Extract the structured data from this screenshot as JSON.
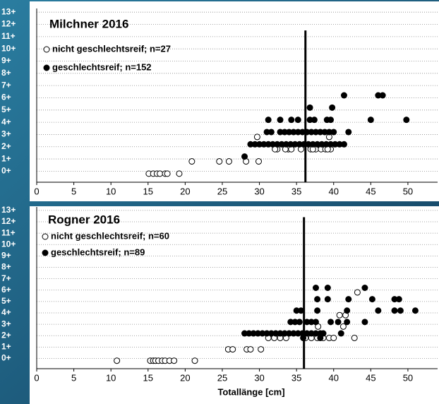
{
  "chart_data": [
    {
      "type": "scatter",
      "title": "Milchner 2016",
      "xlim": [
        0,
        54
      ],
      "ylim": [
        -0.9,
        13.3
      ],
      "xticks": [
        0,
        5,
        10,
        15,
        20,
        25,
        30,
        35,
        40,
        45,
        50
      ],
      "yticks": [
        {
          "value": 0,
          "label": "0+"
        },
        {
          "value": 1,
          "label": "1+"
        },
        {
          "value": 2,
          "label": "2+"
        },
        {
          "value": 3,
          "label": "3+"
        },
        {
          "value": 4,
          "label": "4+"
        },
        {
          "value": 5,
          "label": "5+"
        },
        {
          "value": 6,
          "label": "6+"
        },
        {
          "value": 7,
          "label": "7+"
        },
        {
          "value": 8,
          "label": "8+"
        },
        {
          "value": 9,
          "label": "9+"
        },
        {
          "value": 10,
          "label": "10+"
        },
        {
          "value": 11,
          "label": "11+"
        },
        {
          "value": 12,
          "label": "12+"
        },
        {
          "value": 13,
          "label": "13+"
        }
      ],
      "grid": true,
      "reference_x": 36.2,
      "reference_top": 11.5,
      "series": [
        {
          "name": "nicht geschlechtsreif; n=27",
          "color": "#000000",
          "filled": false,
          "x": [
            15.1,
            15.7,
            16.2,
            16.6,
            17.3,
            17.6,
            19.2,
            20.9,
            24.6,
            25.9,
            28.2,
            29.9,
            29.7,
            32.4,
            33.9,
            34.3,
            35.6,
            37.6,
            38.3,
            38.9,
            39.6,
            39.4,
            36.9,
            33.5,
            32.1,
            37.2,
            39.2
          ],
          "values": [
            -0.2,
            -0.2,
            -0.2,
            -0.2,
            -0.2,
            -0.2,
            -0.2,
            0.8,
            0.8,
            0.8,
            0.8,
            0.8,
            2.8,
            1.8,
            1.8,
            1.8,
            1.8,
            1.8,
            1.8,
            1.8,
            1.8,
            2.8,
            1.8,
            1.8,
            1.8,
            1.8,
            1.8
          ]
        },
        {
          "name": "geschlechtsreif; n=152",
          "color": "#000000",
          "filled": true,
          "x": [
            28.0,
            28.8,
            29.4,
            30.0,
            30.6,
            31.2,
            31.8,
            32.4,
            33.0,
            33.6,
            34.2,
            34.8,
            35.4,
            36.0,
            36.6,
            37.2,
            37.8,
            38.4,
            39.0,
            39.6,
            40.2,
            40.8,
            41.4,
            31.0,
            31.6,
            32.8,
            33.4,
            34.0,
            34.6,
            35.2,
            35.8,
            36.4,
            37.0,
            37.6,
            38.2,
            38.8,
            39.4,
            40.0,
            42.0,
            31.2,
            32.8,
            34.3,
            35.2,
            36.8,
            37.4,
            39.1,
            39.6,
            45.0,
            49.8,
            36.8,
            39.8,
            41.4,
            46.0,
            46.6
          ],
          "values": [
            1.2,
            2.2,
            2.2,
            2.2,
            2.2,
            2.2,
            2.2,
            2.2,
            2.2,
            2.2,
            2.2,
            2.2,
            2.2,
            2.2,
            2.2,
            2.2,
            2.2,
            2.2,
            2.2,
            2.2,
            2.2,
            2.2,
            2.2,
            3.2,
            3.2,
            3.2,
            3.2,
            3.2,
            3.2,
            3.2,
            3.2,
            3.2,
            3.2,
            3.2,
            3.2,
            3.2,
            3.2,
            3.2,
            3.2,
            4.2,
            4.2,
            4.2,
            4.2,
            4.2,
            4.2,
            4.2,
            4.2,
            4.2,
            4.2,
            5.2,
            5.2,
            6.2,
            6.2,
            6.2
          ]
        }
      ]
    },
    {
      "type": "scatter",
      "title": "Rogner 2016",
      "x_label": "Totallänge [cm]",
      "xlim": [
        0,
        54
      ],
      "ylim": [
        -0.9,
        13.3
      ],
      "xticks": [
        0,
        5,
        10,
        15,
        20,
        25,
        30,
        35,
        40,
        45,
        50
      ],
      "yticks": [
        {
          "value": 0,
          "label": "0+"
        },
        {
          "value": 1,
          "label": "1+"
        },
        {
          "value": 2,
          "label": "2+"
        },
        {
          "value": 3,
          "label": "3+"
        },
        {
          "value": 4,
          "label": "4+"
        },
        {
          "value": 5,
          "label": "5+"
        },
        {
          "value": 6,
          "label": "6+"
        },
        {
          "value": 7,
          "label": "7+"
        },
        {
          "value": 8,
          "label": "8+"
        },
        {
          "value": 9,
          "label": "9+"
        },
        {
          "value": 10,
          "label": "10+"
        },
        {
          "value": 11,
          "label": "11+"
        },
        {
          "value": 12,
          "label": "12+"
        },
        {
          "value": 13,
          "label": "13+"
        }
      ],
      "grid": true,
      "reference_x": 36.0,
      "reference_top": 12.4,
      "series": [
        {
          "name": "nicht geschlechtsreif; n=60",
          "color": "#000000",
          "filled": false,
          "x": [
            10.8,
            15.3,
            15.7,
            16.0,
            16.4,
            16.9,
            17.3,
            17.9,
            18.5,
            21.3,
            25.8,
            26.4,
            28.3,
            28.8,
            30.2,
            31.2,
            32.0,
            32.8,
            33.6,
            36.2,
            37.0,
            37.8,
            38.6,
            39.4,
            40.0,
            37.9,
            40.8,
            41.3,
            41.6,
            42.8,
            43.2
          ],
          "values": [
            -0.2,
            -0.2,
            -0.2,
            -0.2,
            -0.2,
            -0.2,
            -0.2,
            -0.2,
            -0.2,
            -0.2,
            0.8,
            0.8,
            0.8,
            0.8,
            0.8,
            1.8,
            1.8,
            1.8,
            1.8,
            1.8,
            1.8,
            1.8,
            1.8,
            1.8,
            1.8,
            2.8,
            3.8,
            2.8,
            3.8,
            1.8,
            5.8
          ]
        },
        {
          "name": "geschlechtsreif; n=89",
          "color": "#000000",
          "filled": true,
          "x": [
            28.0,
            28.6,
            29.2,
            29.8,
            30.4,
            31.0,
            31.6,
            32.2,
            32.8,
            33.4,
            34.0,
            34.6,
            35.2,
            35.8,
            36.4,
            37.0,
            37.6,
            38.2,
            38.6,
            41.0,
            34.2,
            34.8,
            35.4,
            36.4,
            37.0,
            37.6,
            39.6,
            40.6,
            41.8,
            44.2,
            35.0,
            35.6,
            37.8,
            41.8,
            46.0,
            48.2,
            49.0,
            51.0,
            37.8,
            39.2,
            42.0,
            45.2,
            48.2,
            48.8,
            37.6,
            39.2,
            44.2,
            35.9,
            38.2
          ],
          "values": [
            2.2,
            2.2,
            2.2,
            2.2,
            2.2,
            2.2,
            2.2,
            2.2,
            2.2,
            2.2,
            2.2,
            2.2,
            2.2,
            2.2,
            2.2,
            2.2,
            2.2,
            2.2,
            2.2,
            2.2,
            3.2,
            3.2,
            3.2,
            3.2,
            3.2,
            3.2,
            3.2,
            3.2,
            3.2,
            3.2,
            4.2,
            4.2,
            4.2,
            4.2,
            4.2,
            4.2,
            4.2,
            4.2,
            5.2,
            5.2,
            5.2,
            5.2,
            5.2,
            5.2,
            6.2,
            6.2,
            6.2,
            1.8,
            1.8
          ]
        }
      ]
    }
  ]
}
